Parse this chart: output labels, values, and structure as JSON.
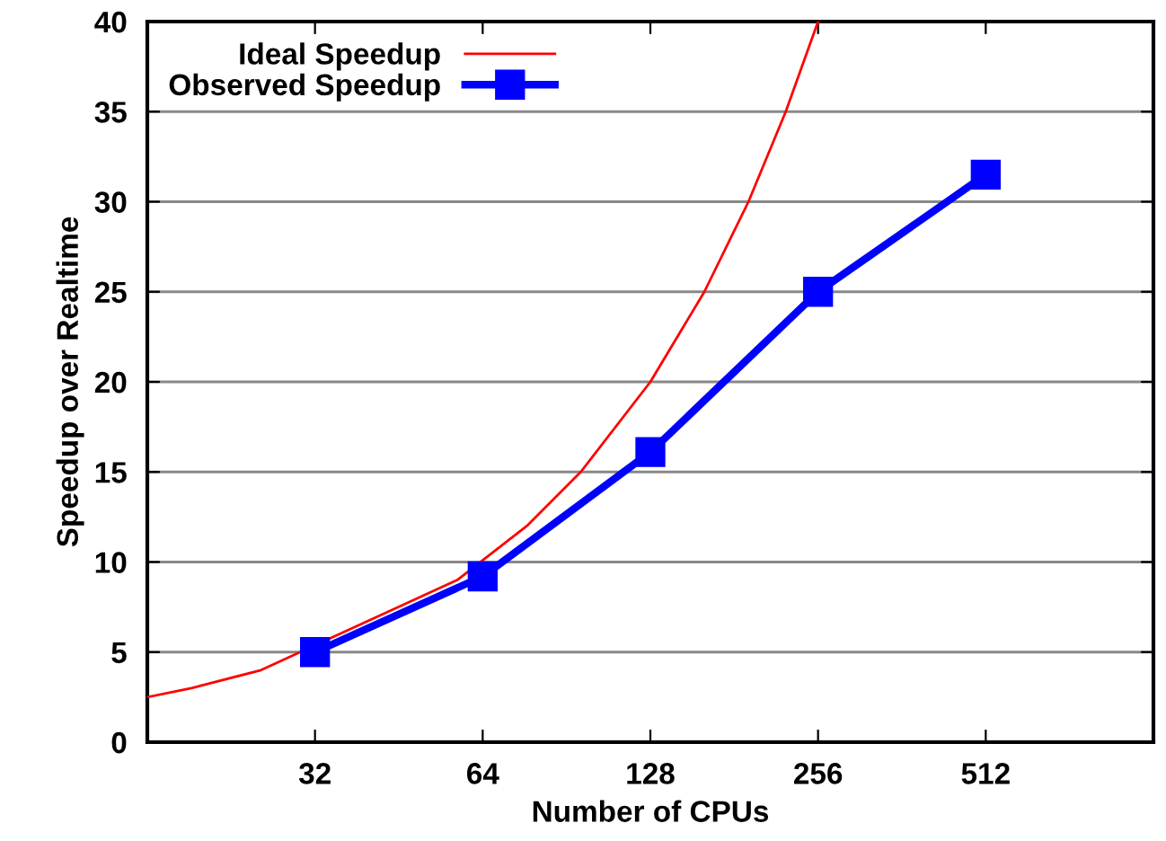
{
  "chart_data": {
    "type": "line",
    "xlabel": "Number of CPUs",
    "ylabel": "Speedup over Realtime",
    "log": "x",
    "xlim": [
      16,
      1024
    ],
    "xticks": [
      32,
      64,
      128,
      256,
      512
    ],
    "ylim": [
      0,
      40
    ],
    "yticks": [
      0,
      5,
      10,
      15,
      20,
      25,
      30,
      35,
      40
    ],
    "grid": "y",
    "legend": "top left",
    "line_style": "solid",
    "series": [
      {
        "name": "Ideal Speedup",
        "color": "#ff0000",
        "marker": "none",
        "x": [
          16,
          19.2,
          25.6,
          57.6,
          76.8,
          96,
          128,
          160,
          192,
          224,
          256
        ],
        "values": [
          2.5,
          3,
          4,
          9,
          12,
          15,
          20,
          25,
          30,
          35,
          40
        ]
      },
      {
        "name": "Observed Speedup",
        "color": "#0000ff",
        "marker": "square",
        "x": [
          32,
          64,
          128,
          256,
          512
        ],
        "values": [
          5,
          9.2,
          16.1,
          25,
          31.5
        ]
      }
    ]
  }
}
